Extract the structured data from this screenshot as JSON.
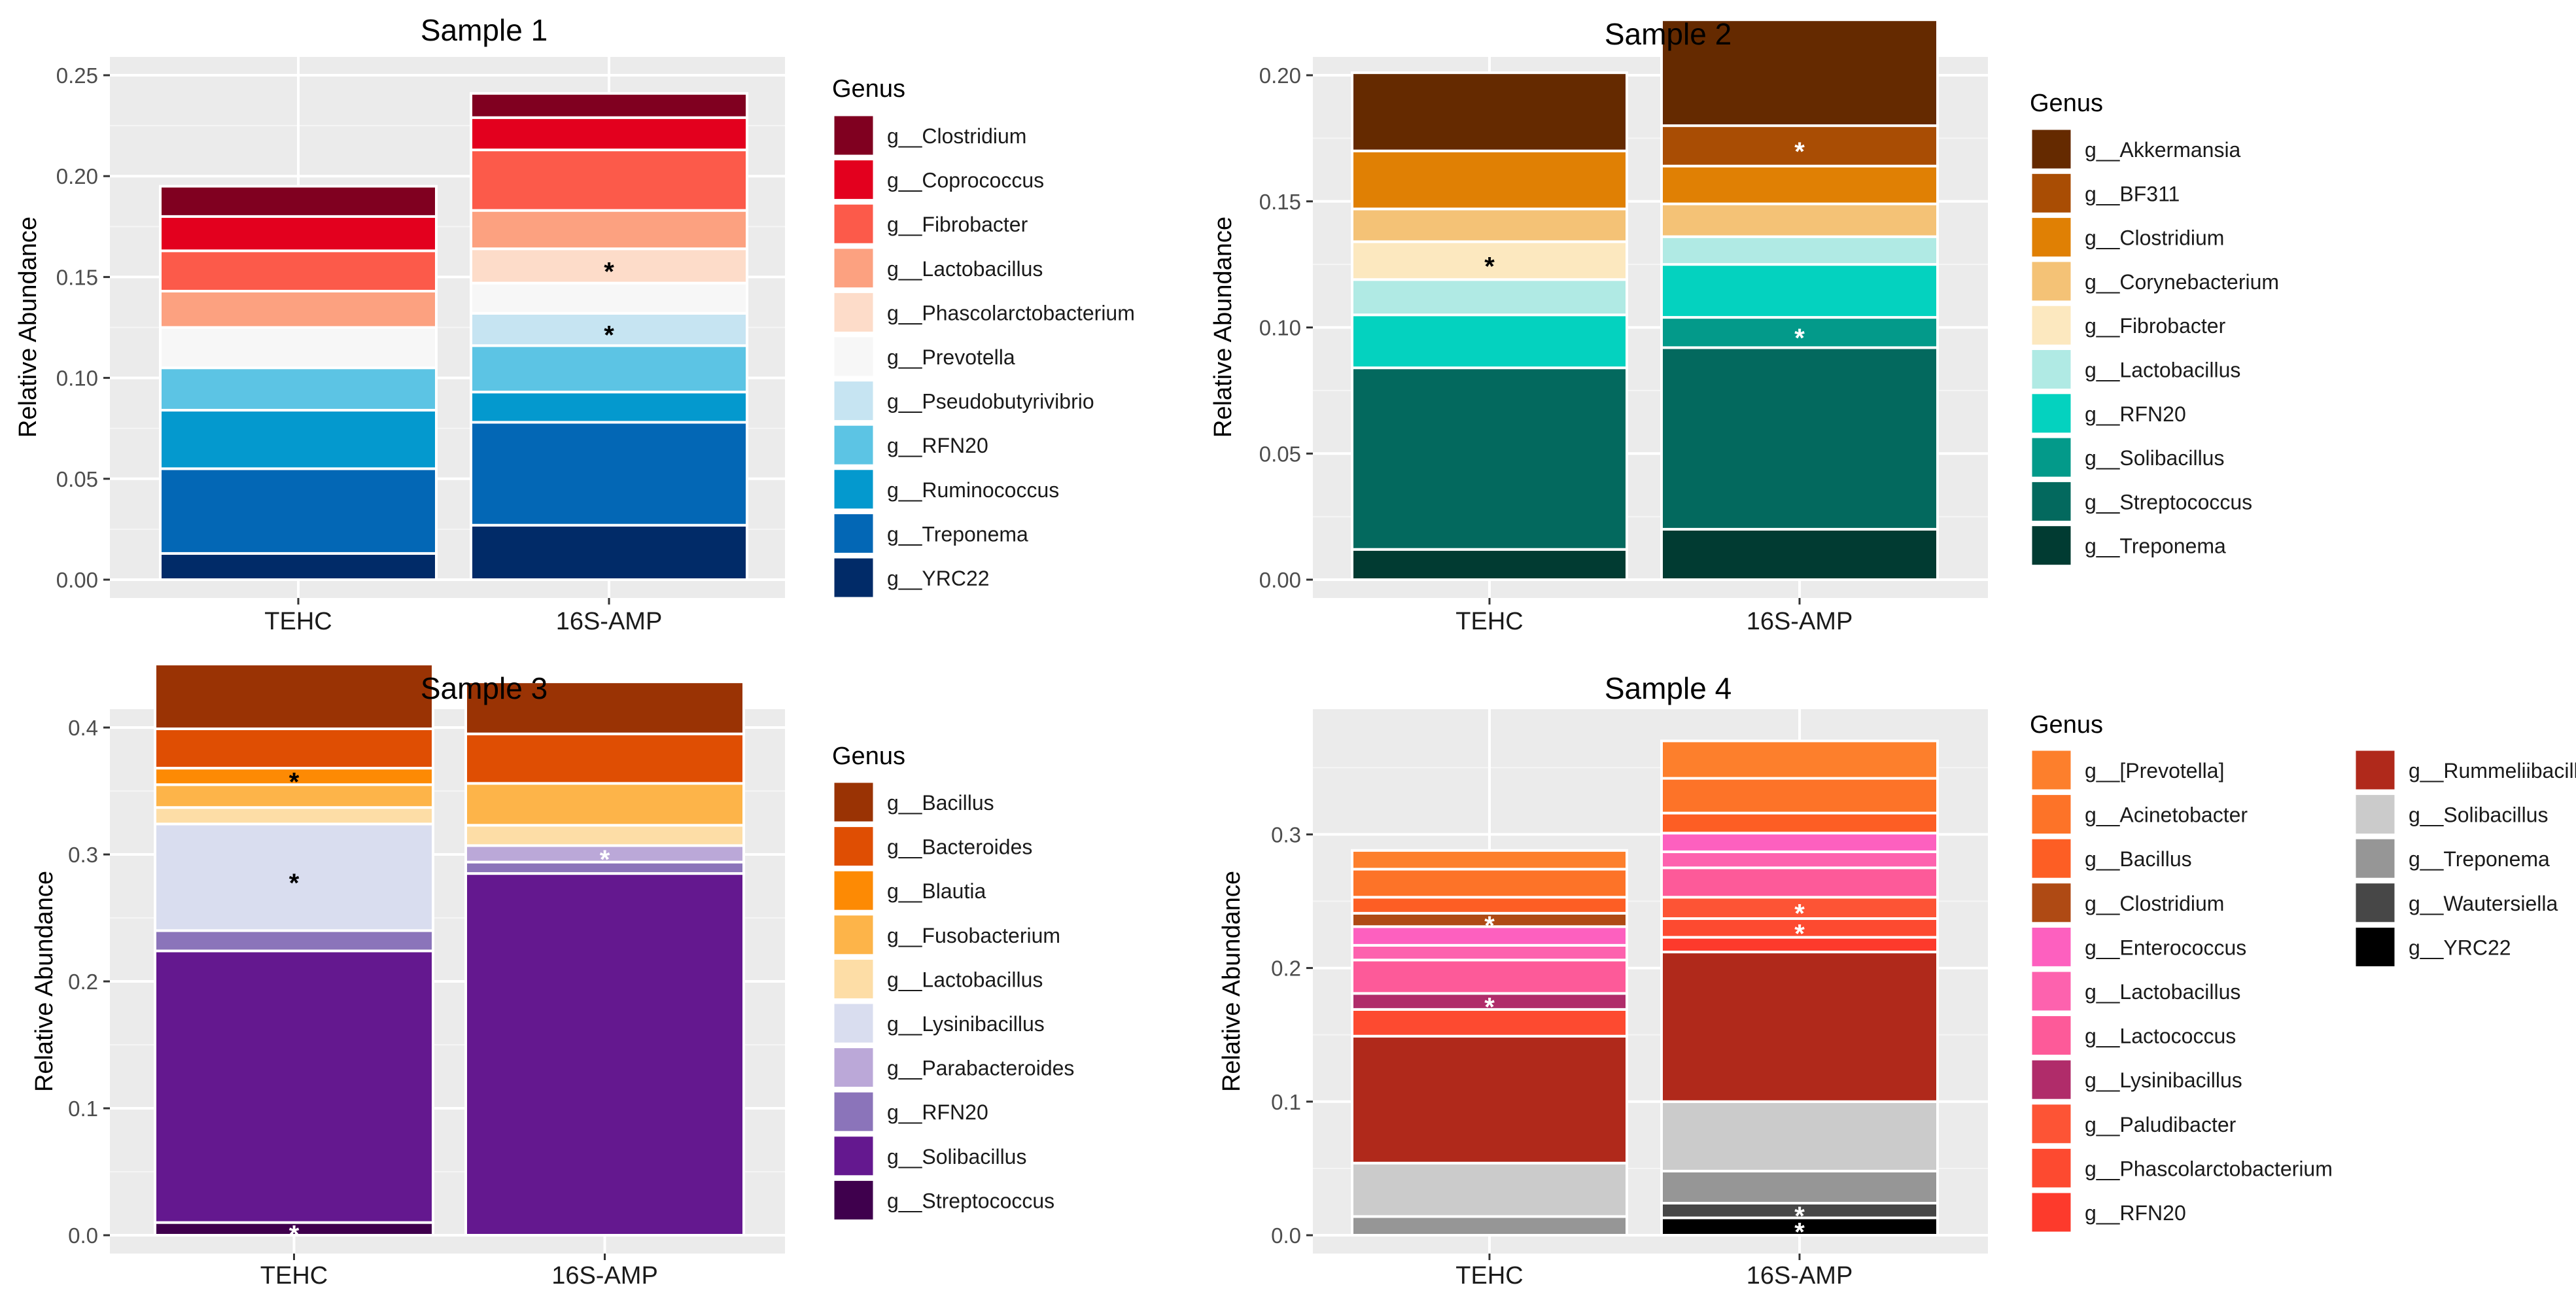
{
  "chart_data": [
    {
      "type": "bar",
      "title": "Sample 1",
      "ylabel": "Relative Abundance",
      "xlabel": "",
      "ylim": [
        0,
        0.25
      ],
      "yticks": [
        0,
        0.05,
        0.1,
        0.15,
        0.2,
        0.25
      ],
      "ytick_labels": [
        "0.00",
        "0.05",
        "0.10",
        "0.15",
        "0.20",
        "0.25"
      ],
      "categories": [
        "TEHC",
        "16S-AMP"
      ],
      "legend_title": "Genus",
      "legend_columns": 1,
      "series": [
        {
          "name": "g__Clostridium",
          "color": "#800020",
          "values": [
            0.015,
            0.012
          ],
          "star": [
            false,
            false
          ]
        },
        {
          "name": "g__Coprococcus",
          "color": "#E3001E",
          "values": [
            0.017,
            0.016
          ],
          "star": [
            false,
            false
          ]
        },
        {
          "name": "g__Fibrobacter",
          "color": "#FC5A4A",
          "values": [
            0.02,
            0.03
          ],
          "star": [
            false,
            false
          ]
        },
        {
          "name": "g__Lactobacillus",
          "color": "#FCA180",
          "values": [
            0.018,
            0.019
          ],
          "star": [
            false,
            false
          ]
        },
        {
          "name": "g__Phascolarctobacterium",
          "color": "#FDDCC9",
          "values": [
            0,
            0.017
          ],
          "star": [
            false,
            true
          ]
        },
        {
          "name": "g__Prevotella",
          "color": "#F7F7F7",
          "values": [
            0.02,
            0.015
          ],
          "star": [
            false,
            false
          ]
        },
        {
          "name": "g__Pseudobutyrivibrio",
          "color": "#C6E4F2",
          "values": [
            0,
            0.016
          ],
          "star": [
            false,
            true
          ]
        },
        {
          "name": "g__RFN20",
          "color": "#5CC4E4",
          "values": [
            0.021,
            0.023
          ],
          "star": [
            false,
            false
          ]
        },
        {
          "name": "g__Ruminococcus",
          "color": "#0499CE",
          "values": [
            0.029,
            0.015
          ],
          "star": [
            false,
            false
          ]
        },
        {
          "name": "g__Treponema",
          "color": "#0367B5",
          "values": [
            0.042,
            0.051
          ],
          "star": [
            false,
            false
          ]
        },
        {
          "name": "g__YRC22",
          "color": "#012B68",
          "values": [
            0.013,
            0.027
          ],
          "star": [
            false,
            false
          ]
        }
      ]
    },
    {
      "type": "bar",
      "title": "Sample 2",
      "ylabel": "Relative Abundance",
      "xlabel": "",
      "ylim": [
        0,
        0.2
      ],
      "yticks": [
        0,
        0.05,
        0.1,
        0.15,
        0.2
      ],
      "ytick_labels": [
        "0.00",
        "0.05",
        "0.10",
        "0.15",
        "0.20"
      ],
      "categories": [
        "TEHC",
        "16S-AMP"
      ],
      "legend_title": "Genus",
      "legend_columns": 1,
      "series": [
        {
          "name": "g__Akkermansia",
          "color": "#652A00",
          "values": [
            0.031,
            0.042
          ],
          "star": [
            false,
            false
          ]
        },
        {
          "name": "g__BF311",
          "color": "#A94D04",
          "values": [
            0,
            0.016
          ],
          "star": [
            false,
            true
          ]
        },
        {
          "name": "g__Clostridium",
          "color": "#E08004",
          "values": [
            0.023,
            0.015
          ],
          "star": [
            false,
            false
          ]
        },
        {
          "name": "g__Corynebacterium",
          "color": "#F4C276",
          "values": [
            0.013,
            0.013
          ],
          "star": [
            false,
            false
          ]
        },
        {
          "name": "g__Fibrobacter",
          "color": "#FCE8BF",
          "values": [
            0.015,
            0
          ],
          "star": [
            true,
            false
          ]
        },
        {
          "name": "g__Lactobacillus",
          "color": "#B0EAE4",
          "values": [
            0.014,
            0.011
          ],
          "star": [
            false,
            false
          ]
        },
        {
          "name": "g__RFN20",
          "color": "#04D2BF",
          "values": [
            0.021,
            0.021
          ],
          "star": [
            false,
            false
          ]
        },
        {
          "name": "g__Solibacillus",
          "color": "#039A8A",
          "values": [
            0,
            0.012
          ],
          "star": [
            false,
            true
          ]
        },
        {
          "name": "g__Streptococcus",
          "color": "#03695E",
          "values": [
            0.072,
            0.072
          ],
          "star": [
            false,
            false
          ]
        },
        {
          "name": "g__Treponema",
          "color": "#013B32",
          "values": [
            0.012,
            0.02
          ],
          "star": [
            false,
            false
          ]
        }
      ]
    },
    {
      "type": "bar",
      "title": "Sample 3",
      "ylabel": "Relative Abundance",
      "xlabel": "",
      "ylim": [
        0,
        0.4
      ],
      "yticks": [
        0,
        0.1,
        0.2,
        0.3,
        0.4
      ],
      "ytick_labels": [
        "0.0",
        "0.1",
        "0.2",
        "0.3",
        "0.4"
      ],
      "categories": [
        "TEHC",
        "16S-AMP"
      ],
      "legend_title": "Genus",
      "legend_columns": 1,
      "series": [
        {
          "name": "g__Bacillus",
          "color": "#9A3304",
          "values": [
            0.051,
            0.041
          ],
          "star": [
            false,
            false
          ]
        },
        {
          "name": "g__Bacteroides",
          "color": "#DF4E03",
          "values": [
            0.031,
            0.039
          ],
          "star": [
            false,
            false
          ]
        },
        {
          "name": "g__Blautia",
          "color": "#FD8A04",
          "values": [
            0.013,
            0
          ],
          "star": [
            true,
            false
          ]
        },
        {
          "name": "g__Fusobacterium",
          "color": "#FDB449",
          "values": [
            0.018,
            0.033
          ],
          "star": [
            false,
            false
          ]
        },
        {
          "name": "g__Lactobacillus",
          "color": "#FDDDA6",
          "values": [
            0.013,
            0.016
          ],
          "star": [
            false,
            false
          ]
        },
        {
          "name": "g__Lysinibacillus",
          "color": "#D9DDEF",
          "values": [
            0.084,
            0
          ],
          "star": [
            true,
            false
          ]
        },
        {
          "name": "g__Parabacteroides",
          "color": "#BBA8D8",
          "values": [
            0,
            0.013
          ],
          "star": [
            false,
            true
          ]
        },
        {
          "name": "g__RFN20",
          "color": "#8B74BA",
          "values": [
            0.016,
            0.009
          ],
          "star": [
            false,
            false
          ]
        },
        {
          "name": "g__Solibacillus",
          "color": "#64188F",
          "values": [
            0.214,
            0.285
          ],
          "star": [
            false,
            false
          ]
        },
        {
          "name": "g__Streptococcus",
          "color": "#3F004D",
          "values": [
            0.01,
            0
          ],
          "star": [
            true,
            false
          ]
        }
      ]
    },
    {
      "type": "bar",
      "title": "Sample 4",
      "ylabel": "Relative Abundance",
      "xlabel": "",
      "ylim": [
        0,
        0.38
      ],
      "yticks": [
        0,
        0.1,
        0.2,
        0.3
      ],
      "ytick_labels": [
        "0.0",
        "0.1",
        "0.2",
        "0.3"
      ],
      "categories": [
        "TEHC",
        "16S-AMP"
      ],
      "legend_title": "Genus",
      "legend_columns": 2,
      "series": [
        {
          "name": "g__[Prevotella]",
          "color": "#FD7F2C",
          "values": [
            0.014,
            0.028
          ],
          "star": [
            false,
            false
          ]
        },
        {
          "name": "g__Acinetobacter",
          "color": "#FD7328",
          "values": [
            0.021,
            0.026
          ],
          "star": [
            false,
            false
          ]
        },
        {
          "name": "g__Bacillus",
          "color": "#FD5E24",
          "values": [
            0.012,
            0.015
          ],
          "star": [
            false,
            false
          ]
        },
        {
          "name": "g__Clostridium",
          "color": "#AF4A14",
          "values": [
            0.01,
            0
          ],
          "star": [
            true,
            false
          ]
        },
        {
          "name": "g__Enterococcus",
          "color": "#FD60BF",
          "values": [
            0.014,
            0.014
          ],
          "star": [
            false,
            false
          ]
        },
        {
          "name": "g__Lactobacillus",
          "color": "#FD62AE",
          "values": [
            0.011,
            0.012
          ],
          "star": [
            false,
            false
          ]
        },
        {
          "name": "g__Lactococcus",
          "color": "#FD5A99",
          "values": [
            0.025,
            0.022
          ],
          "star": [
            false,
            false
          ]
        },
        {
          "name": "g__Lysinibacillus",
          "color": "#B02C6A",
          "values": [
            0.012,
            0
          ],
          "star": [
            true,
            false
          ]
        },
        {
          "name": "g__Paludibacter",
          "color": "#FD5435",
          "values": [
            0,
            0.016
          ],
          "star": [
            false,
            true
          ]
        },
        {
          "name": "g__Phascolarctobacterium",
          "color": "#FD4A30",
          "values": [
            0.02,
            0.014
          ],
          "star": [
            false,
            true
          ]
        },
        {
          "name": "g__RFN20",
          "color": "#FD3A2C",
          "values": [
            0,
            0.011
          ],
          "star": [
            false,
            false
          ]
        },
        {
          "name": "g__Rummeliibacillus",
          "color": "#B0291B",
          "values": [
            0.095,
            0.112
          ],
          "star": [
            false,
            false
          ]
        },
        {
          "name": "g__Solibacillus",
          "color": "#CBCBCB",
          "values": [
            0.04,
            0.052
          ],
          "star": [
            false,
            false
          ]
        },
        {
          "name": "g__Treponema",
          "color": "#969696",
          "values": [
            0.014,
            0.024
          ],
          "star": [
            false,
            false
          ]
        },
        {
          "name": "g__Wautersiella",
          "color": "#474747",
          "values": [
            0,
            0.011
          ],
          "star": [
            false,
            true
          ]
        },
        {
          "name": "g__YRC22",
          "color": "#000000",
          "values": [
            0,
            0.013
          ],
          "star": [
            false,
            true
          ]
        }
      ]
    }
  ]
}
